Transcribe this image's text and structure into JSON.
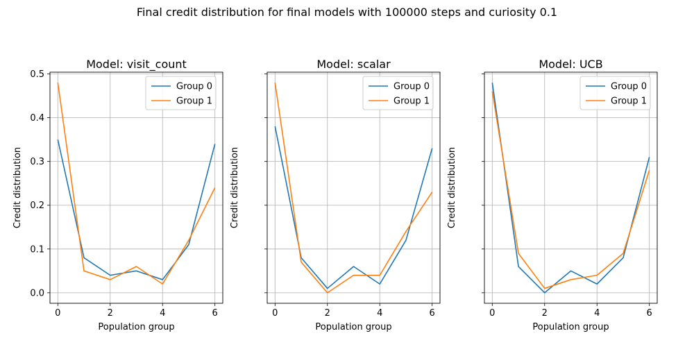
{
  "suptitle": "Final credit distribution for final models with 100000 steps and curiosity 0.1",
  "colors": {
    "series_0": "#1f77b4",
    "series_1": "#ff7f0e",
    "grid": "#b0b0b0"
  },
  "chart_data": [
    {
      "type": "line",
      "title": "Model: visit_count",
      "xlabel": "Population group",
      "ylabel": "Credit distribution",
      "x": [
        0,
        1,
        2,
        3,
        4,
        5,
        6
      ],
      "xlim": [
        -0.3,
        6.3
      ],
      "ylim": [
        -0.024,
        0.504
      ],
      "xticks": [
        0,
        2,
        4,
        6
      ],
      "yticks": [
        0.0,
        0.1,
        0.2,
        0.3,
        0.4,
        0.5
      ],
      "ytick_labels": [
        "0.0",
        "0.1",
        "0.2",
        "0.3",
        "0.4",
        "0.5"
      ],
      "show_yticklabels": true,
      "grid": true,
      "legend": "top-right",
      "series": [
        {
          "name": "Group 0",
          "values": [
            0.35,
            0.08,
            0.04,
            0.05,
            0.03,
            0.11,
            0.34
          ]
        },
        {
          "name": "Group 1",
          "values": [
            0.48,
            0.05,
            0.03,
            0.06,
            0.02,
            0.12,
            0.24
          ]
        }
      ]
    },
    {
      "type": "line",
      "title": "Model: scalar",
      "xlabel": "Population group",
      "ylabel": "Credit distribution",
      "x": [
        0,
        1,
        2,
        3,
        4,
        5,
        6
      ],
      "xlim": [
        -0.3,
        6.3
      ],
      "ylim": [
        -0.024,
        0.504
      ],
      "xticks": [
        0,
        2,
        4,
        6
      ],
      "yticks": [
        0.0,
        0.1,
        0.2,
        0.3,
        0.4,
        0.5
      ],
      "show_yticklabels": false,
      "grid": true,
      "legend": "top-right",
      "series": [
        {
          "name": "Group 0",
          "values": [
            0.38,
            0.08,
            0.01,
            0.06,
            0.02,
            0.12,
            0.33
          ]
        },
        {
          "name": "Group 1",
          "values": [
            0.48,
            0.07,
            0.0,
            0.04,
            0.04,
            0.14,
            0.23
          ]
        }
      ]
    },
    {
      "type": "line",
      "title": "Model: UCB",
      "xlabel": "Population group",
      "ylabel": "Credit distribution",
      "x": [
        0,
        1,
        2,
        3,
        4,
        5,
        6
      ],
      "xlim": [
        -0.3,
        6.3
      ],
      "ylim": [
        -0.024,
        0.504
      ],
      "xticks": [
        0,
        2,
        4,
        6
      ],
      "yticks": [
        0.0,
        0.1,
        0.2,
        0.3,
        0.4,
        0.5
      ],
      "show_yticklabels": false,
      "grid": true,
      "legend": "top-right",
      "series": [
        {
          "name": "Group 0",
          "values": [
            0.48,
            0.06,
            0.0,
            0.05,
            0.02,
            0.08,
            0.31
          ]
        },
        {
          "name": "Group 1",
          "values": [
            0.46,
            0.09,
            0.01,
            0.03,
            0.04,
            0.09,
            0.28
          ]
        }
      ]
    }
  ]
}
